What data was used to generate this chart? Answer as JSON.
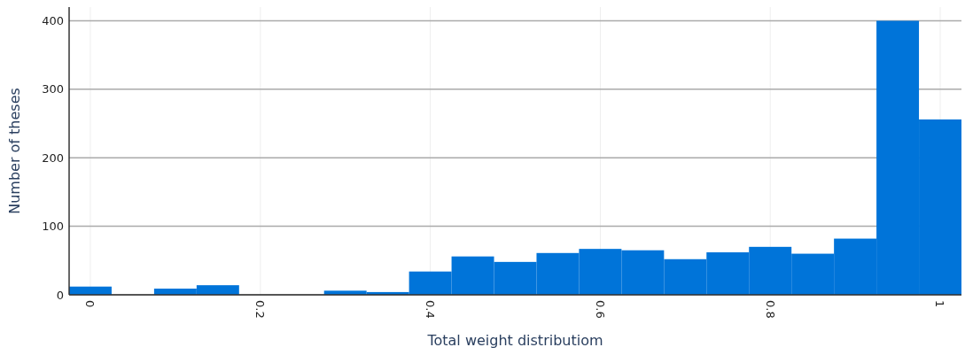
{
  "chart_data": {
    "type": "histogram",
    "xlabel": "Total weight distributiom",
    "ylabel": "Number of theses",
    "bins": [
      -0.025,
      0.025,
      0.075,
      0.125,
      0.175,
      0.225,
      0.275,
      0.325,
      0.375,
      0.425,
      0.475,
      0.525,
      0.575,
      0.625,
      0.675,
      0.725,
      0.775,
      0.825,
      0.875,
      0.925,
      0.975,
      1.025
    ],
    "values": [
      12,
      0,
      9,
      14,
      0,
      0,
      6,
      4,
      34,
      56,
      48,
      61,
      67,
      65,
      52,
      62,
      70,
      60,
      82,
      400,
      256
    ],
    "color": "#0074d9",
    "xlim": [
      -0.025,
      1.025
    ],
    "ylim": [
      0,
      420
    ],
    "xticks": [
      0,
      0.2,
      0.4,
      0.6,
      0.8,
      1
    ],
    "yticks": [
      0,
      100,
      200,
      300,
      400
    ],
    "grid": true
  }
}
